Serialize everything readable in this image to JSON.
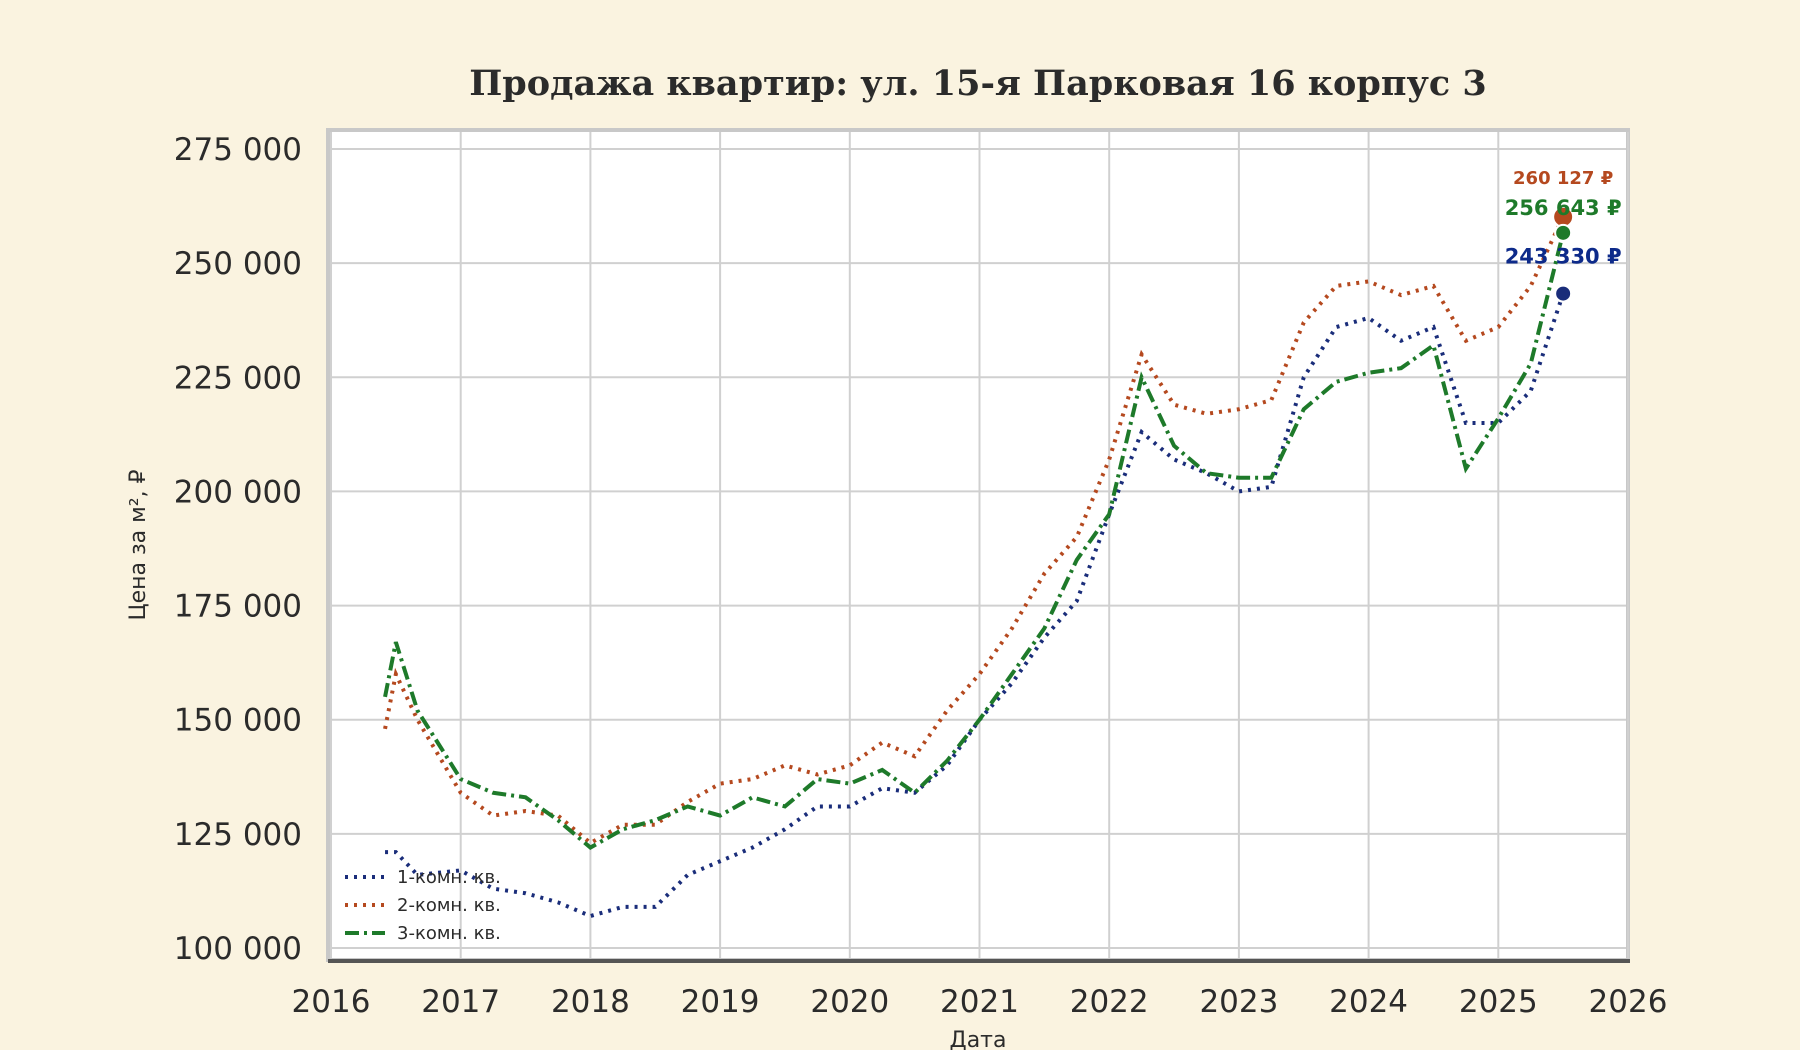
{
  "chart_data": {
    "type": "line",
    "title": "Продажа квартир: ул. 15-я Парковая 16 корпус 3",
    "xlabel": "Дата",
    "ylabel": "Цена за м², ₽",
    "xlim": [
      "2016-01",
      "2026-01"
    ],
    "ylim": [
      100000,
      275000
    ],
    "xticks": [
      "2016",
      "2017",
      "2018",
      "2019",
      "2020",
      "2021",
      "2022",
      "2023",
      "2024",
      "2025",
      "2026"
    ],
    "yticks": [
      100000,
      125000,
      150000,
      175000,
      200000,
      225000,
      250000,
      275000
    ],
    "ytick_labels": [
      "100 000",
      "125 000",
      "150 000",
      "175 000",
      "200 000",
      "225 000",
      "250 000",
      "275 000"
    ],
    "grid": true,
    "legend_placement": "bottom-left",
    "dates": [
      "2016-06",
      "2016-07",
      "2016-09",
      "2017-01",
      "2017-04",
      "2017-07",
      "2017-10",
      "2018-01",
      "2018-04",
      "2018-07",
      "2018-10",
      "2019-01",
      "2019-04",
      "2019-07",
      "2019-10",
      "2020-01",
      "2020-04",
      "2020-07",
      "2020-10",
      "2021-01",
      "2021-04",
      "2021-07",
      "2021-10",
      "2022-01",
      "2022-04",
      "2022-07",
      "2022-10",
      "2023-01",
      "2023-04",
      "2023-07",
      "2023-10",
      "2024-01",
      "2024-04",
      "2024-07",
      "2024-10",
      "2025-01",
      "2025-04",
      "2025-07"
    ],
    "series": [
      {
        "name": "1-комн. кв.",
        "color": "#1a2d7a",
        "dash": "dotted",
        "values": [
          121000,
          121000,
          116000,
          117000,
          113000,
          112000,
          110000,
          107000,
          109000,
          109000,
          116000,
          119000,
          122000,
          126000,
          131000,
          131000,
          135000,
          134000,
          140000,
          150000,
          158000,
          168000,
          176000,
          195000,
          213000,
          207000,
          204000,
          200000,
          201000,
          225000,
          236000,
          238000,
          233000,
          236000,
          215000,
          215000,
          222000,
          243330
        ],
        "last_label": "243 330 ₽",
        "last_color": "#0d2a8a"
      },
      {
        "name": "2-комн. кв.",
        "color": "#b5491f",
        "dash": "dotted",
        "values": [
          148000,
          160000,
          150000,
          134000,
          129000,
          130000,
          129000,
          123000,
          127000,
          127000,
          132000,
          136000,
          137000,
          140000,
          138000,
          140000,
          145000,
          142000,
          152000,
          160000,
          170000,
          182000,
          190000,
          207000,
          230000,
          219000,
          217000,
          218000,
          220000,
          237000,
          245000,
          246000,
          243000,
          245000,
          233000,
          236000,
          245000,
          260127
        ],
        "last_label": "260 127 ₽",
        "last_color": "#b5491f"
      },
      {
        "name": "3-комн. кв.",
        "color": "#1e7a2a",
        "dash": "dashed",
        "values": [
          155000,
          167000,
          152000,
          137000,
          134000,
          133000,
          128000,
          122000,
          126000,
          128000,
          131000,
          129000,
          133000,
          131000,
          137000,
          136000,
          139000,
          134000,
          141000,
          150000,
          160000,
          170000,
          185000,
          195000,
          225000,
          210000,
          204000,
          203000,
          203000,
          218000,
          224000,
          226000,
          227000,
          232000,
          205000,
          216000,
          228000,
          256643
        ],
        "last_label": "256 643 ₽",
        "last_color": "#1e7a2a"
      }
    ]
  }
}
